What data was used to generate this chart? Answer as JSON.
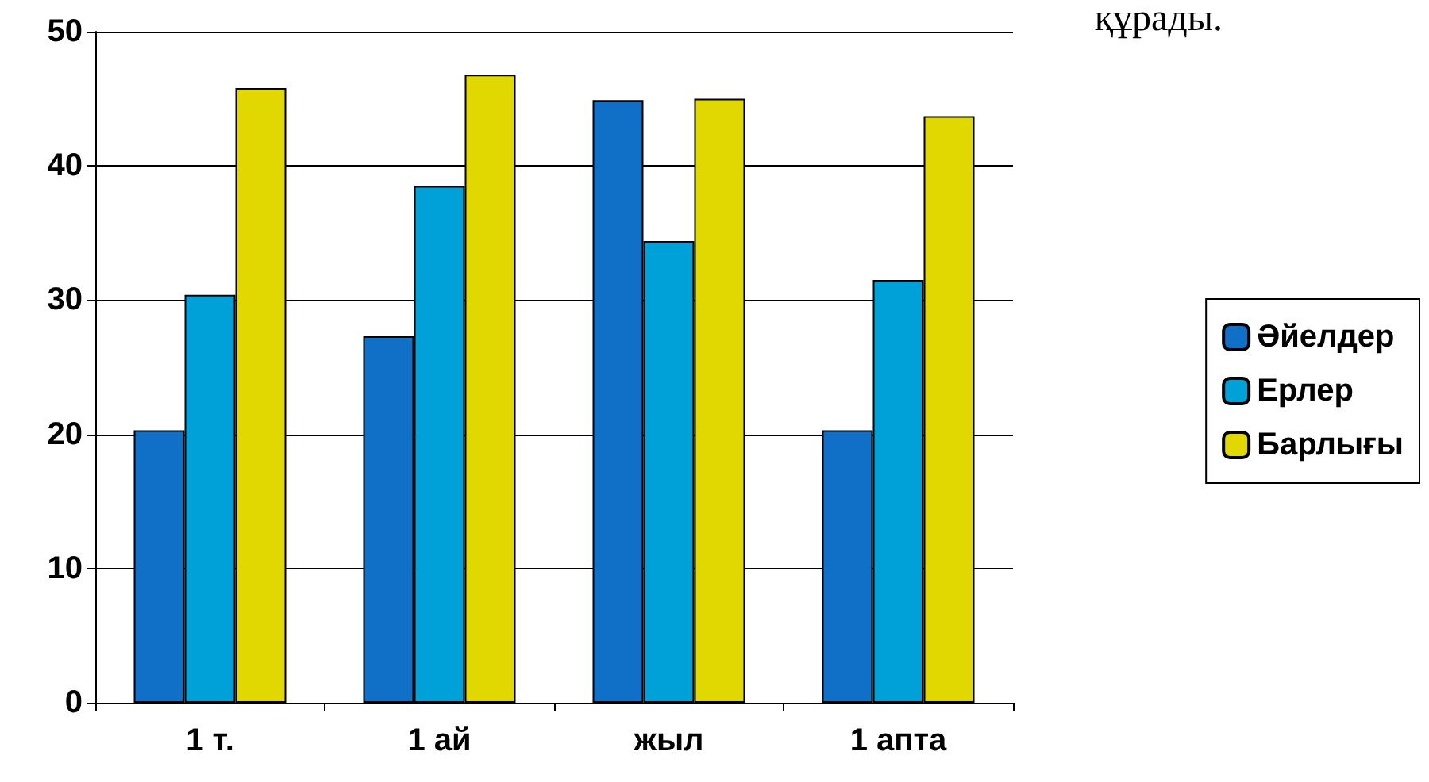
{
  "chart_data": {
    "type": "bar",
    "categories": [
      "1 т.",
      "1 ай",
      "жыл",
      "1 апта"
    ],
    "series": [
      {
        "name": "Әйелдер",
        "color": "#1070c8",
        "values": [
          20.3,
          27.3,
          44.9,
          20.3
        ]
      },
      {
        "name": "Ерлер",
        "color": "#00a0d8",
        "values": [
          30.4,
          38.5,
          34.4,
          31.5
        ]
      },
      {
        "name": "Барлығы",
        "color": "#e0d800",
        "values": [
          45.8,
          46.8,
          45,
          43.7
        ]
      }
    ],
    "ylim": [
      0,
      50
    ],
    "yticks": [
      0,
      10,
      20,
      30,
      40,
      50
    ],
    "grid": "y",
    "legend": "right",
    "annotations": [
      "құрады."
    ]
  }
}
